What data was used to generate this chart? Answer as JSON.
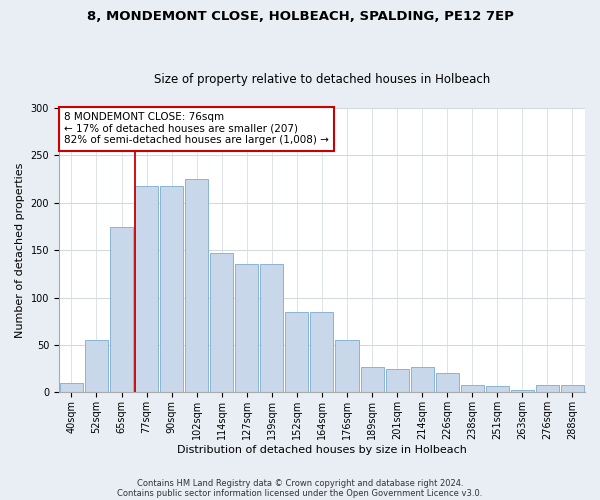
{
  "title1": "8, MONDEMONT CLOSE, HOLBEACH, SPALDING, PE12 7EP",
  "title2": "Size of property relative to detached houses in Holbeach",
  "xlabel": "Distribution of detached houses by size in Holbeach",
  "ylabel": "Number of detached properties",
  "categories": [
    "40sqm",
    "52sqm",
    "65sqm",
    "77sqm",
    "90sqm",
    "102sqm",
    "114sqm",
    "127sqm",
    "139sqm",
    "152sqm",
    "164sqm",
    "176sqm",
    "189sqm",
    "201sqm",
    "214sqm",
    "226sqm",
    "238sqm",
    "251sqm",
    "263sqm",
    "276sqm",
    "288sqm"
  ],
  "bar_values": [
    10,
    55,
    175,
    218,
    218,
    225,
    147,
    135,
    135,
    85,
    85,
    55,
    27,
    25,
    27,
    20,
    8,
    7,
    3,
    8,
    8
  ],
  "bar_color": "#c8d8ea",
  "bar_edge_color": "#7aabcf",
  "vline_color": "#cc0000",
  "annotation_text": "8 MONDEMONT CLOSE: 76sqm\n← 17% of detached houses are smaller (207)\n82% of semi-detached houses are larger (1,008) →",
  "annotation_box_color": "#ffffff",
  "annotation_box_edge_color": "#cc0000",
  "footer1": "Contains HM Land Registry data © Crown copyright and database right 2024.",
  "footer2": "Contains public sector information licensed under the Open Government Licence v3.0.",
  "ylim": [
    0,
    300
  ],
  "yticks": [
    0,
    50,
    100,
    150,
    200,
    250,
    300
  ],
  "background_color": "#e8eef4",
  "plot_bg_color": "#ffffff",
  "title_fontsize": 9.5,
  "subtitle_fontsize": 8.5,
  "tick_fontsize": 7,
  "ylabel_fontsize": 8,
  "xlabel_fontsize": 8,
  "footer_fontsize": 6,
  "ann_fontsize": 7.5
}
